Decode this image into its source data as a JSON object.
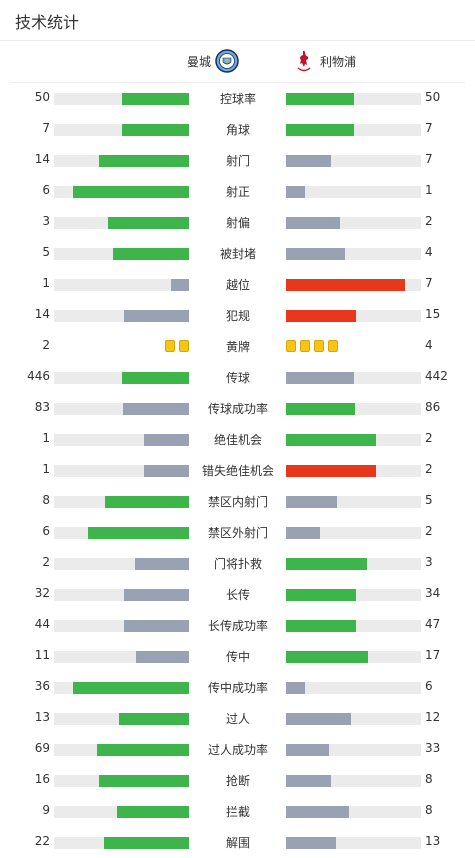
{
  "title": "技术统计",
  "home_team": {
    "name": "曼城"
  },
  "away_team": {
    "name": "利物浦"
  },
  "colors": {
    "win": "#3db54a",
    "neutral": "#99a2b3",
    "loss": "#e8381b",
    "track": "#ebebeb",
    "card": "#f5c518"
  },
  "stats": [
    {
      "label": "控球率",
      "home": "50",
      "away": "50",
      "home_fill": 0.5,
      "away_fill": 0.5,
      "home_color": "win",
      "away_color": "win"
    },
    {
      "label": "角球",
      "home": "7",
      "away": "7",
      "home_fill": 0.5,
      "away_fill": 0.5,
      "home_color": "win",
      "away_color": "win"
    },
    {
      "label": "射门",
      "home": "14",
      "away": "7",
      "home_fill": 0.67,
      "away_fill": 0.33,
      "home_color": "win",
      "away_color": "neutral"
    },
    {
      "label": "射正",
      "home": "6",
      "away": "1",
      "home_fill": 0.86,
      "away_fill": 0.14,
      "home_color": "win",
      "away_color": "neutral"
    },
    {
      "label": "射偏",
      "home": "3",
      "away": "2",
      "home_fill": 0.6,
      "away_fill": 0.4,
      "home_color": "win",
      "away_color": "neutral"
    },
    {
      "label": "被封堵",
      "home": "5",
      "away": "4",
      "home_fill": 0.56,
      "away_fill": 0.44,
      "home_color": "win",
      "away_color": "neutral"
    },
    {
      "label": "越位",
      "home": "1",
      "away": "7",
      "home_fill": 0.13,
      "away_fill": 0.88,
      "home_color": "neutral",
      "away_color": "loss"
    },
    {
      "label": "犯规",
      "home": "14",
      "away": "15",
      "home_fill": 0.48,
      "away_fill": 0.52,
      "home_color": "neutral",
      "away_color": "loss"
    },
    {
      "label": "黄牌",
      "home": "2",
      "away": "4",
      "home_cards": 2,
      "away_cards": 4
    },
    {
      "label": "传球",
      "home": "446",
      "away": "442",
      "home_fill": 0.5,
      "away_fill": 0.5,
      "home_color": "win",
      "away_color": "neutral"
    },
    {
      "label": "传球成功率",
      "home": "83",
      "away": "86",
      "home_fill": 0.49,
      "away_fill": 0.51,
      "home_color": "neutral",
      "away_color": "win"
    },
    {
      "label": "绝佳机会",
      "home": "1",
      "away": "2",
      "home_fill": 0.33,
      "away_fill": 0.67,
      "home_color": "neutral",
      "away_color": "win"
    },
    {
      "label": "错失绝佳机会",
      "home": "1",
      "away": "2",
      "home_fill": 0.33,
      "away_fill": 0.67,
      "home_color": "neutral",
      "away_color": "loss"
    },
    {
      "label": "禁区内射门",
      "home": "8",
      "away": "5",
      "home_fill": 0.62,
      "away_fill": 0.38,
      "home_color": "win",
      "away_color": "neutral"
    },
    {
      "label": "禁区外射门",
      "home": "6",
      "away": "2",
      "home_fill": 0.75,
      "away_fill": 0.25,
      "home_color": "win",
      "away_color": "neutral"
    },
    {
      "label": "门将扑救",
      "home": "2",
      "away": "3",
      "home_fill": 0.4,
      "away_fill": 0.6,
      "home_color": "neutral",
      "away_color": "win"
    },
    {
      "label": "长传",
      "home": "32",
      "away": "34",
      "home_fill": 0.48,
      "away_fill": 0.52,
      "home_color": "neutral",
      "away_color": "win"
    },
    {
      "label": "长传成功率",
      "home": "44",
      "away": "47",
      "home_fill": 0.48,
      "away_fill": 0.52,
      "home_color": "neutral",
      "away_color": "win"
    },
    {
      "label": "传中",
      "home": "11",
      "away": "17",
      "home_fill": 0.39,
      "away_fill": 0.61,
      "home_color": "neutral",
      "away_color": "win"
    },
    {
      "label": "传中成功率",
      "home": "36",
      "away": "6",
      "home_fill": 0.86,
      "away_fill": 0.14,
      "home_color": "win",
      "away_color": "neutral"
    },
    {
      "label": "过人",
      "home": "13",
      "away": "12",
      "home_fill": 0.52,
      "away_fill": 0.48,
      "home_color": "win",
      "away_color": "neutral"
    },
    {
      "label": "过人成功率",
      "home": "69",
      "away": "33",
      "home_fill": 0.68,
      "away_fill": 0.32,
      "home_color": "win",
      "away_color": "neutral"
    },
    {
      "label": "抢断",
      "home": "16",
      "away": "8",
      "home_fill": 0.67,
      "away_fill": 0.33,
      "home_color": "win",
      "away_color": "neutral"
    },
    {
      "label": "拦截",
      "home": "9",
      "away": "8",
      "home_fill": 0.53,
      "away_fill": 0.47,
      "home_color": "win",
      "away_color": "neutral"
    },
    {
      "label": "解围",
      "home": "22",
      "away": "13",
      "home_fill": 0.63,
      "away_fill": 0.37,
      "home_color": "win",
      "away_color": "neutral"
    }
  ]
}
